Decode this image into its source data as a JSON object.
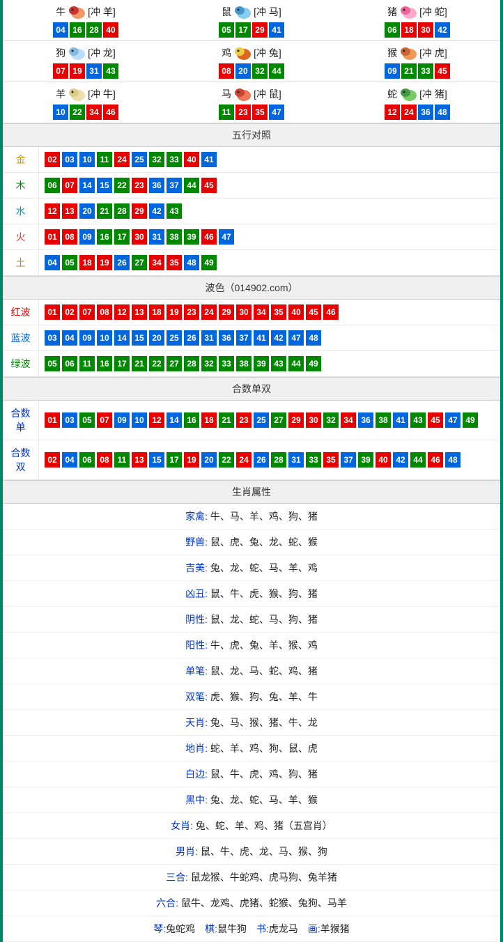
{
  "colors": {
    "red": "#e60000",
    "blue": "#0066dd",
    "green": "#008800",
    "border": "#008866",
    "gold": "#cc9900",
    "wood": "#008800",
    "water": "#0099cc",
    "fire": "#ee3333",
    "earth": "#aa8844",
    "link": "#0033cc"
  },
  "zodiac": [
    {
      "name": "牛",
      "clash": "[冲 羊]",
      "icon_color": [
        "#cc3333",
        "#ee9966"
      ],
      "nums": [
        {
          "v": "04",
          "c": "blue"
        },
        {
          "v": "16",
          "c": "green"
        },
        {
          "v": "28",
          "c": "green"
        },
        {
          "v": "40",
          "c": "red"
        }
      ]
    },
    {
      "name": "鼠",
      "clash": "[冲 马]",
      "icon_color": [
        "#4499cc",
        "#88ccee"
      ],
      "nums": [
        {
          "v": "05",
          "c": "green"
        },
        {
          "v": "17",
          "c": "green"
        },
        {
          "v": "29",
          "c": "red"
        },
        {
          "v": "41",
          "c": "blue"
        }
      ]
    },
    {
      "name": "猪",
      "clash": "[冲 蛇]",
      "icon_color": [
        "#ee6699",
        "#ffaacc"
      ],
      "nums": [
        {
          "v": "06",
          "c": "green"
        },
        {
          "v": "18",
          "c": "red"
        },
        {
          "v": "30",
          "c": "red"
        },
        {
          "v": "42",
          "c": "blue"
        }
      ]
    },
    {
      "name": "狗",
      "clash": "[冲 龙]",
      "icon_color": [
        "#88bbdd",
        "#bbddff"
      ],
      "nums": [
        {
          "v": "07",
          "c": "red"
        },
        {
          "v": "19",
          "c": "red"
        },
        {
          "v": "31",
          "c": "blue"
        },
        {
          "v": "43",
          "c": "green"
        }
      ]
    },
    {
      "name": "鸡",
      "clash": "[冲 兔]",
      "icon_color": [
        "#eecc44",
        "#dd6622"
      ],
      "nums": [
        {
          "v": "08",
          "c": "red"
        },
        {
          "v": "20",
          "c": "blue"
        },
        {
          "v": "32",
          "c": "green"
        },
        {
          "v": "44",
          "c": "green"
        }
      ]
    },
    {
      "name": "猴",
      "clash": "[冲 虎]",
      "icon_color": [
        "#cc6633",
        "#ee9955"
      ],
      "nums": [
        {
          "v": "09",
          "c": "blue"
        },
        {
          "v": "21",
          "c": "green"
        },
        {
          "v": "33",
          "c": "green"
        },
        {
          "v": "45",
          "c": "red"
        }
      ]
    },
    {
      "name": "羊",
      "clash": "[冲 牛]",
      "icon_color": [
        "#ddcc88",
        "#eeddaa"
      ],
      "nums": [
        {
          "v": "10",
          "c": "blue"
        },
        {
          "v": "22",
          "c": "green"
        },
        {
          "v": "34",
          "c": "red"
        },
        {
          "v": "46",
          "c": "red"
        }
      ]
    },
    {
      "name": "马",
      "clash": "[冲 鼠]",
      "icon_color": [
        "#cc4433",
        "#ee7755"
      ],
      "nums": [
        {
          "v": "11",
          "c": "green"
        },
        {
          "v": "23",
          "c": "red"
        },
        {
          "v": "35",
          "c": "red"
        },
        {
          "v": "47",
          "c": "blue"
        }
      ]
    },
    {
      "name": "蛇",
      "clash": "[冲 猪]",
      "icon_color": [
        "#449944",
        "#77cc66"
      ],
      "nums": [
        {
          "v": "12",
          "c": "red"
        },
        {
          "v": "24",
          "c": "red"
        },
        {
          "v": "36",
          "c": "blue"
        },
        {
          "v": "48",
          "c": "blue"
        }
      ]
    }
  ],
  "sections": {
    "wuxing": {
      "title": "五行对照",
      "rows": [
        {
          "label": "金",
          "label_class": "l-gold",
          "nums": [
            {
              "v": "02",
              "c": "red"
            },
            {
              "v": "03",
              "c": "blue"
            },
            {
              "v": "10",
              "c": "blue"
            },
            {
              "v": "11",
              "c": "green"
            },
            {
              "v": "24",
              "c": "red"
            },
            {
              "v": "25",
              "c": "blue"
            },
            {
              "v": "32",
              "c": "green"
            },
            {
              "v": "33",
              "c": "green"
            },
            {
              "v": "40",
              "c": "red"
            },
            {
              "v": "41",
              "c": "blue"
            }
          ]
        },
        {
          "label": "木",
          "label_class": "l-wood",
          "nums": [
            {
              "v": "06",
              "c": "green"
            },
            {
              "v": "07",
              "c": "red"
            },
            {
              "v": "14",
              "c": "blue"
            },
            {
              "v": "15",
              "c": "blue"
            },
            {
              "v": "22",
              "c": "green"
            },
            {
              "v": "23",
              "c": "red"
            },
            {
              "v": "36",
              "c": "blue"
            },
            {
              "v": "37",
              "c": "blue"
            },
            {
              "v": "44",
              "c": "green"
            },
            {
              "v": "45",
              "c": "red"
            }
          ]
        },
        {
          "label": "水",
          "label_class": "l-water",
          "nums": [
            {
              "v": "12",
              "c": "red"
            },
            {
              "v": "13",
              "c": "red"
            },
            {
              "v": "20",
              "c": "blue"
            },
            {
              "v": "21",
              "c": "green"
            },
            {
              "v": "28",
              "c": "green"
            },
            {
              "v": "29",
              "c": "red"
            },
            {
              "v": "42",
              "c": "blue"
            },
            {
              "v": "43",
              "c": "green"
            }
          ]
        },
        {
          "label": "火",
          "label_class": "l-fire",
          "nums": [
            {
              "v": "01",
              "c": "red"
            },
            {
              "v": "08",
              "c": "red"
            },
            {
              "v": "09",
              "c": "blue"
            },
            {
              "v": "16",
              "c": "green"
            },
            {
              "v": "17",
              "c": "green"
            },
            {
              "v": "30",
              "c": "red"
            },
            {
              "v": "31",
              "c": "blue"
            },
            {
              "v": "38",
              "c": "green"
            },
            {
              "v": "39",
              "c": "green"
            },
            {
              "v": "46",
              "c": "red"
            },
            {
              "v": "47",
              "c": "blue"
            }
          ]
        },
        {
          "label": "土",
          "label_class": "l-earth",
          "nums": [
            {
              "v": "04",
              "c": "blue"
            },
            {
              "v": "05",
              "c": "green"
            },
            {
              "v": "18",
              "c": "red"
            },
            {
              "v": "19",
              "c": "red"
            },
            {
              "v": "26",
              "c": "blue"
            },
            {
              "v": "27",
              "c": "green"
            },
            {
              "v": "34",
              "c": "red"
            },
            {
              "v": "35",
              "c": "red"
            },
            {
              "v": "48",
              "c": "blue"
            },
            {
              "v": "49",
              "c": "green"
            }
          ]
        }
      ]
    },
    "bose": {
      "title": "波色（014902.com）",
      "rows": [
        {
          "label": "红波",
          "label_class": "l-redwave",
          "nums": [
            {
              "v": "01",
              "c": "red"
            },
            {
              "v": "02",
              "c": "red"
            },
            {
              "v": "07",
              "c": "red"
            },
            {
              "v": "08",
              "c": "red"
            },
            {
              "v": "12",
              "c": "red"
            },
            {
              "v": "13",
              "c": "red"
            },
            {
              "v": "18",
              "c": "red"
            },
            {
              "v": "19",
              "c": "red"
            },
            {
              "v": "23",
              "c": "red"
            },
            {
              "v": "24",
              "c": "red"
            },
            {
              "v": "29",
              "c": "red"
            },
            {
              "v": "30",
              "c": "red"
            },
            {
              "v": "34",
              "c": "red"
            },
            {
              "v": "35",
              "c": "red"
            },
            {
              "v": "40",
              "c": "red"
            },
            {
              "v": "45",
              "c": "red"
            },
            {
              "v": "46",
              "c": "red"
            }
          ]
        },
        {
          "label": "蓝波",
          "label_class": "l-bluewave",
          "nums": [
            {
              "v": "03",
              "c": "blue"
            },
            {
              "v": "04",
              "c": "blue"
            },
            {
              "v": "09",
              "c": "blue"
            },
            {
              "v": "10",
              "c": "blue"
            },
            {
              "v": "14",
              "c": "blue"
            },
            {
              "v": "15",
              "c": "blue"
            },
            {
              "v": "20",
              "c": "blue"
            },
            {
              "v": "25",
              "c": "blue"
            },
            {
              "v": "26",
              "c": "blue"
            },
            {
              "v": "31",
              "c": "blue"
            },
            {
              "v": "36",
              "c": "blue"
            },
            {
              "v": "37",
              "c": "blue"
            },
            {
              "v": "41",
              "c": "blue"
            },
            {
              "v": "42",
              "c": "blue"
            },
            {
              "v": "47",
              "c": "blue"
            },
            {
              "v": "48",
              "c": "blue"
            }
          ]
        },
        {
          "label": "绿波",
          "label_class": "l-greenwave",
          "nums": [
            {
              "v": "05",
              "c": "green"
            },
            {
              "v": "06",
              "c": "green"
            },
            {
              "v": "11",
              "c": "green"
            },
            {
              "v": "16",
              "c": "green"
            },
            {
              "v": "17",
              "c": "green"
            },
            {
              "v": "21",
              "c": "green"
            },
            {
              "v": "22",
              "c": "green"
            },
            {
              "v": "27",
              "c": "green"
            },
            {
              "v": "28",
              "c": "green"
            },
            {
              "v": "32",
              "c": "green"
            },
            {
              "v": "33",
              "c": "green"
            },
            {
              "v": "38",
              "c": "green"
            },
            {
              "v": "39",
              "c": "green"
            },
            {
              "v": "43",
              "c": "green"
            },
            {
              "v": "44",
              "c": "green"
            },
            {
              "v": "49",
              "c": "green"
            }
          ]
        }
      ]
    },
    "heshu": {
      "title": "合数单双",
      "rows": [
        {
          "label": "合数单",
          "label_class": "l-odd",
          "nums": [
            {
              "v": "01",
              "c": "red"
            },
            {
              "v": "03",
              "c": "blue"
            },
            {
              "v": "05",
              "c": "green"
            },
            {
              "v": "07",
              "c": "red"
            },
            {
              "v": "09",
              "c": "blue"
            },
            {
              "v": "10",
              "c": "blue"
            },
            {
              "v": "12",
              "c": "red"
            },
            {
              "v": "14",
              "c": "blue"
            },
            {
              "v": "16",
              "c": "green"
            },
            {
              "v": "18",
              "c": "red"
            },
            {
              "v": "21",
              "c": "green"
            },
            {
              "v": "23",
              "c": "red"
            },
            {
              "v": "25",
              "c": "blue"
            },
            {
              "v": "27",
              "c": "green"
            },
            {
              "v": "29",
              "c": "red"
            },
            {
              "v": "30",
              "c": "red"
            },
            {
              "v": "32",
              "c": "green"
            },
            {
              "v": "34",
              "c": "red"
            },
            {
              "v": "36",
              "c": "blue"
            },
            {
              "v": "38",
              "c": "green"
            },
            {
              "v": "41",
              "c": "blue"
            },
            {
              "v": "43",
              "c": "green"
            },
            {
              "v": "45",
              "c": "red"
            },
            {
              "v": "47",
              "c": "blue"
            },
            {
              "v": "49",
              "c": "green"
            }
          ]
        },
        {
          "label": "合数双",
          "label_class": "l-even",
          "nums": [
            {
              "v": "02",
              "c": "red"
            },
            {
              "v": "04",
              "c": "blue"
            },
            {
              "v": "06",
              "c": "green"
            },
            {
              "v": "08",
              "c": "red"
            },
            {
              "v": "11",
              "c": "green"
            },
            {
              "v": "13",
              "c": "red"
            },
            {
              "v": "15",
              "c": "blue"
            },
            {
              "v": "17",
              "c": "green"
            },
            {
              "v": "19",
              "c": "red"
            },
            {
              "v": "20",
              "c": "blue"
            },
            {
              "v": "22",
              "c": "green"
            },
            {
              "v": "24",
              "c": "red"
            },
            {
              "v": "26",
              "c": "blue"
            },
            {
              "v": "28",
              "c": "green"
            },
            {
              "v": "31",
              "c": "blue"
            },
            {
              "v": "33",
              "c": "green"
            },
            {
              "v": "35",
              "c": "red"
            },
            {
              "v": "37",
              "c": "blue"
            },
            {
              "v": "39",
              "c": "green"
            },
            {
              "v": "40",
              "c": "red"
            },
            {
              "v": "42",
              "c": "blue"
            },
            {
              "v": "44",
              "c": "green"
            },
            {
              "v": "46",
              "c": "red"
            },
            {
              "v": "48",
              "c": "blue"
            }
          ]
        }
      ]
    },
    "shuxing": {
      "title": "生肖属性",
      "rows": [
        {
          "label": "家禽",
          "label_class": "attr-label",
          "val": "牛、马、羊、鸡、狗、猪"
        },
        {
          "label": "野兽",
          "label_class": "attr-label",
          "val": "鼠、虎、兔、龙、蛇、猴"
        },
        {
          "label": "吉美",
          "label_class": "attr-label",
          "val": "兔、龙、蛇、马、羊、鸡"
        },
        {
          "label": "凶丑",
          "label_class": "attr-label",
          "val": "鼠、牛、虎、猴、狗、猪"
        },
        {
          "label": "阴性",
          "label_class": "attr-label",
          "val": "鼠、龙、蛇、马、狗、猪"
        },
        {
          "label": "阳性",
          "label_class": "attr-label",
          "val": "牛、虎、兔、羊、猴、鸡"
        },
        {
          "label": "单笔",
          "label_class": "attr-label",
          "val": "鼠、龙、马、蛇、鸡、猪"
        },
        {
          "label": "双笔",
          "label_class": "attr-label",
          "val": "虎、猴、狗、兔、羊、牛"
        },
        {
          "label": "天肖",
          "label_class": "attr-label",
          "val": "兔、马、猴、猪、牛、龙"
        },
        {
          "label": "地肖",
          "label_class": "attr-label",
          "val": "蛇、羊、鸡、狗、鼠、虎"
        },
        {
          "label": "白边",
          "label_class": "attr-label",
          "val": "鼠、牛、虎、鸡、狗、猪"
        },
        {
          "label": "黑中",
          "label_class": "attr-label",
          "val": "兔、龙、蛇、马、羊、猴"
        },
        {
          "label": "女肖",
          "label_class": "attr-label",
          "val": "兔、蛇、羊、鸡、猪（五宫肖）"
        },
        {
          "label": "男肖",
          "label_class": "attr-label",
          "val": "鼠、牛、虎、龙、马、猴、狗"
        },
        {
          "label": "三合",
          "label_class": "attr-label",
          "val": "鼠龙猴、牛蛇鸡、虎马狗、兔羊猪"
        },
        {
          "label": "六合",
          "label_class": "attr-label",
          "val": "鼠牛、龙鸡、虎猪、蛇猴、兔狗、马羊"
        }
      ],
      "four_arts": [
        {
          "k": "琴",
          "v": "兔蛇鸡"
        },
        {
          "k": "棋",
          "v": "鼠牛狗"
        },
        {
          "k": "书",
          "v": "虎龙马"
        },
        {
          "k": "画",
          "v": "羊猴猪"
        }
      ]
    }
  }
}
